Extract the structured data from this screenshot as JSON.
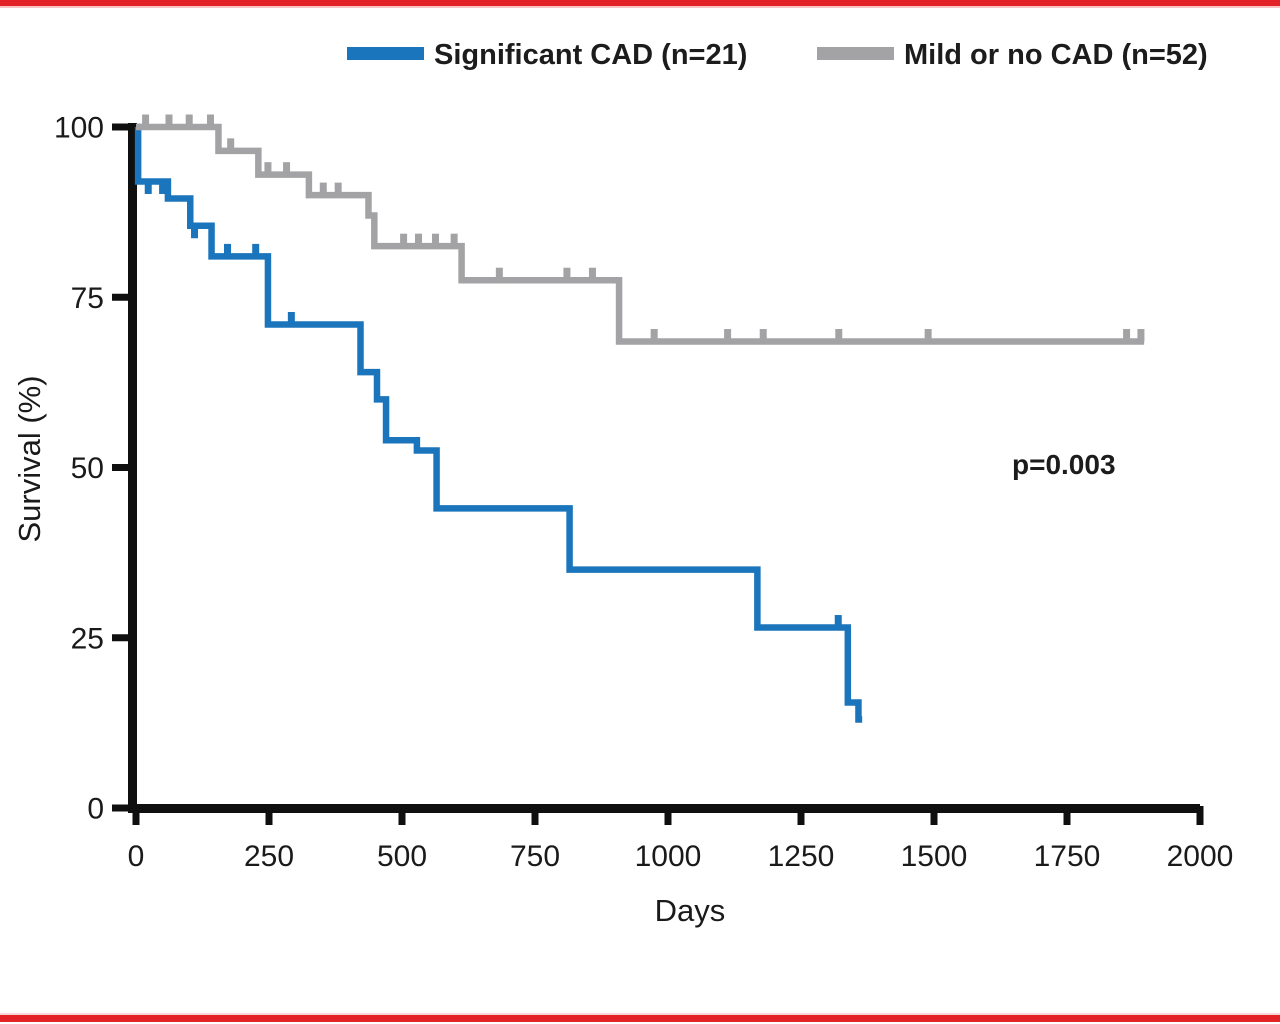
{
  "page": {
    "border_color": "#e32227",
    "background": "#ffffff"
  },
  "legend": {
    "items": [
      {
        "label": "Significant CAD (n=21)",
        "color": "#1b75bc"
      },
      {
        "label": "Mild or no CAD (n=52)",
        "color": "#a3a3a5"
      }
    ]
  },
  "annotation": {
    "p_value": "p=0.003"
  },
  "chart_data": {
    "type": "line",
    "subtype": "kaplan-meier-step-curve",
    "title": "",
    "xlabel": "Days",
    "ylabel": "Survival (%)",
    "xlim": [
      0,
      2000
    ],
    "ylim": [
      0,
      100
    ],
    "x_ticks": [
      0,
      250,
      500,
      750,
      1000,
      1250,
      1500,
      1750,
      2000
    ],
    "y_ticks": [
      100,
      75,
      50,
      25,
      0
    ],
    "grid": false,
    "legend_position": "top-center",
    "annotations": [
      {
        "text": "p=0.003",
        "x_day": 1720,
        "y_pct": 50
      }
    ],
    "series": [
      {
        "name": "Significant CAD (n=21)",
        "slug": "significant-cad",
        "n": 21,
        "color": "#1b75bc",
        "steps": [
          [
            0,
            100
          ],
          [
            4,
            92
          ],
          [
            60,
            89.5
          ],
          [
            102,
            85.5
          ],
          [
            142,
            81
          ],
          [
            248,
            71
          ],
          [
            422,
            64
          ],
          [
            453,
            60
          ],
          [
            470,
            54
          ],
          [
            528,
            52.5
          ],
          [
            565,
            44
          ],
          [
            815,
            35
          ],
          [
            1168,
            26.5
          ],
          [
            1338,
            15.5
          ],
          [
            1358,
            13
          ]
        ],
        "end_day": 1365,
        "censor_marks": [
          {
            "day": 23,
            "pct": 92,
            "side": "below"
          },
          {
            "day": 50,
            "pct": 92,
            "side": "below"
          },
          {
            "day": 110,
            "pct": 85.5,
            "side": "below"
          },
          {
            "day": 172,
            "pct": 81,
            "side": "above"
          },
          {
            "day": 225,
            "pct": 81,
            "side": "above"
          },
          {
            "day": 292,
            "pct": 71,
            "side": "above"
          },
          {
            "day": 1320,
            "pct": 26.5,
            "side": "above"
          }
        ]
      },
      {
        "name": "Mild or no CAD (n=52)",
        "slug": "mild-or-no-cad",
        "n": 52,
        "color": "#a3a3a5",
        "steps": [
          [
            0,
            100
          ],
          [
            155,
            96.5
          ],
          [
            230,
            93
          ],
          [
            325,
            90
          ],
          [
            437,
            87
          ],
          [
            448,
            82.5
          ],
          [
            612,
            77.5
          ],
          [
            908,
            68.5
          ]
        ],
        "end_day": 1895,
        "censor_marks": [
          {
            "day": 18,
            "pct": 100,
            "side": "above"
          },
          {
            "day": 62,
            "pct": 100,
            "side": "above"
          },
          {
            "day": 100,
            "pct": 100,
            "side": "above"
          },
          {
            "day": 140,
            "pct": 100,
            "side": "above"
          },
          {
            "day": 178,
            "pct": 96.5,
            "side": "above"
          },
          {
            "day": 248,
            "pct": 93,
            "side": "above"
          },
          {
            "day": 283,
            "pct": 93,
            "side": "above"
          },
          {
            "day": 352,
            "pct": 90,
            "side": "above"
          },
          {
            "day": 380,
            "pct": 90,
            "side": "above"
          },
          {
            "day": 503,
            "pct": 82.5,
            "side": "above"
          },
          {
            "day": 531,
            "pct": 82.5,
            "side": "above"
          },
          {
            "day": 563,
            "pct": 82.5,
            "side": "above"
          },
          {
            "day": 598,
            "pct": 82.5,
            "side": "above"
          },
          {
            "day": 683,
            "pct": 77.5,
            "side": "above"
          },
          {
            "day": 810,
            "pct": 77.5,
            "side": "above"
          },
          {
            "day": 858,
            "pct": 77.5,
            "side": "above"
          },
          {
            "day": 974,
            "pct": 68.5,
            "side": "above"
          },
          {
            "day": 1112,
            "pct": 68.5,
            "side": "above"
          },
          {
            "day": 1179,
            "pct": 68.5,
            "side": "above"
          },
          {
            "day": 1321,
            "pct": 68.5,
            "side": "above"
          },
          {
            "day": 1489,
            "pct": 68.5,
            "side": "above"
          },
          {
            "day": 1862,
            "pct": 68.5,
            "side": "above"
          },
          {
            "day": 1889,
            "pct": 68.5,
            "side": "above"
          }
        ]
      }
    ]
  }
}
